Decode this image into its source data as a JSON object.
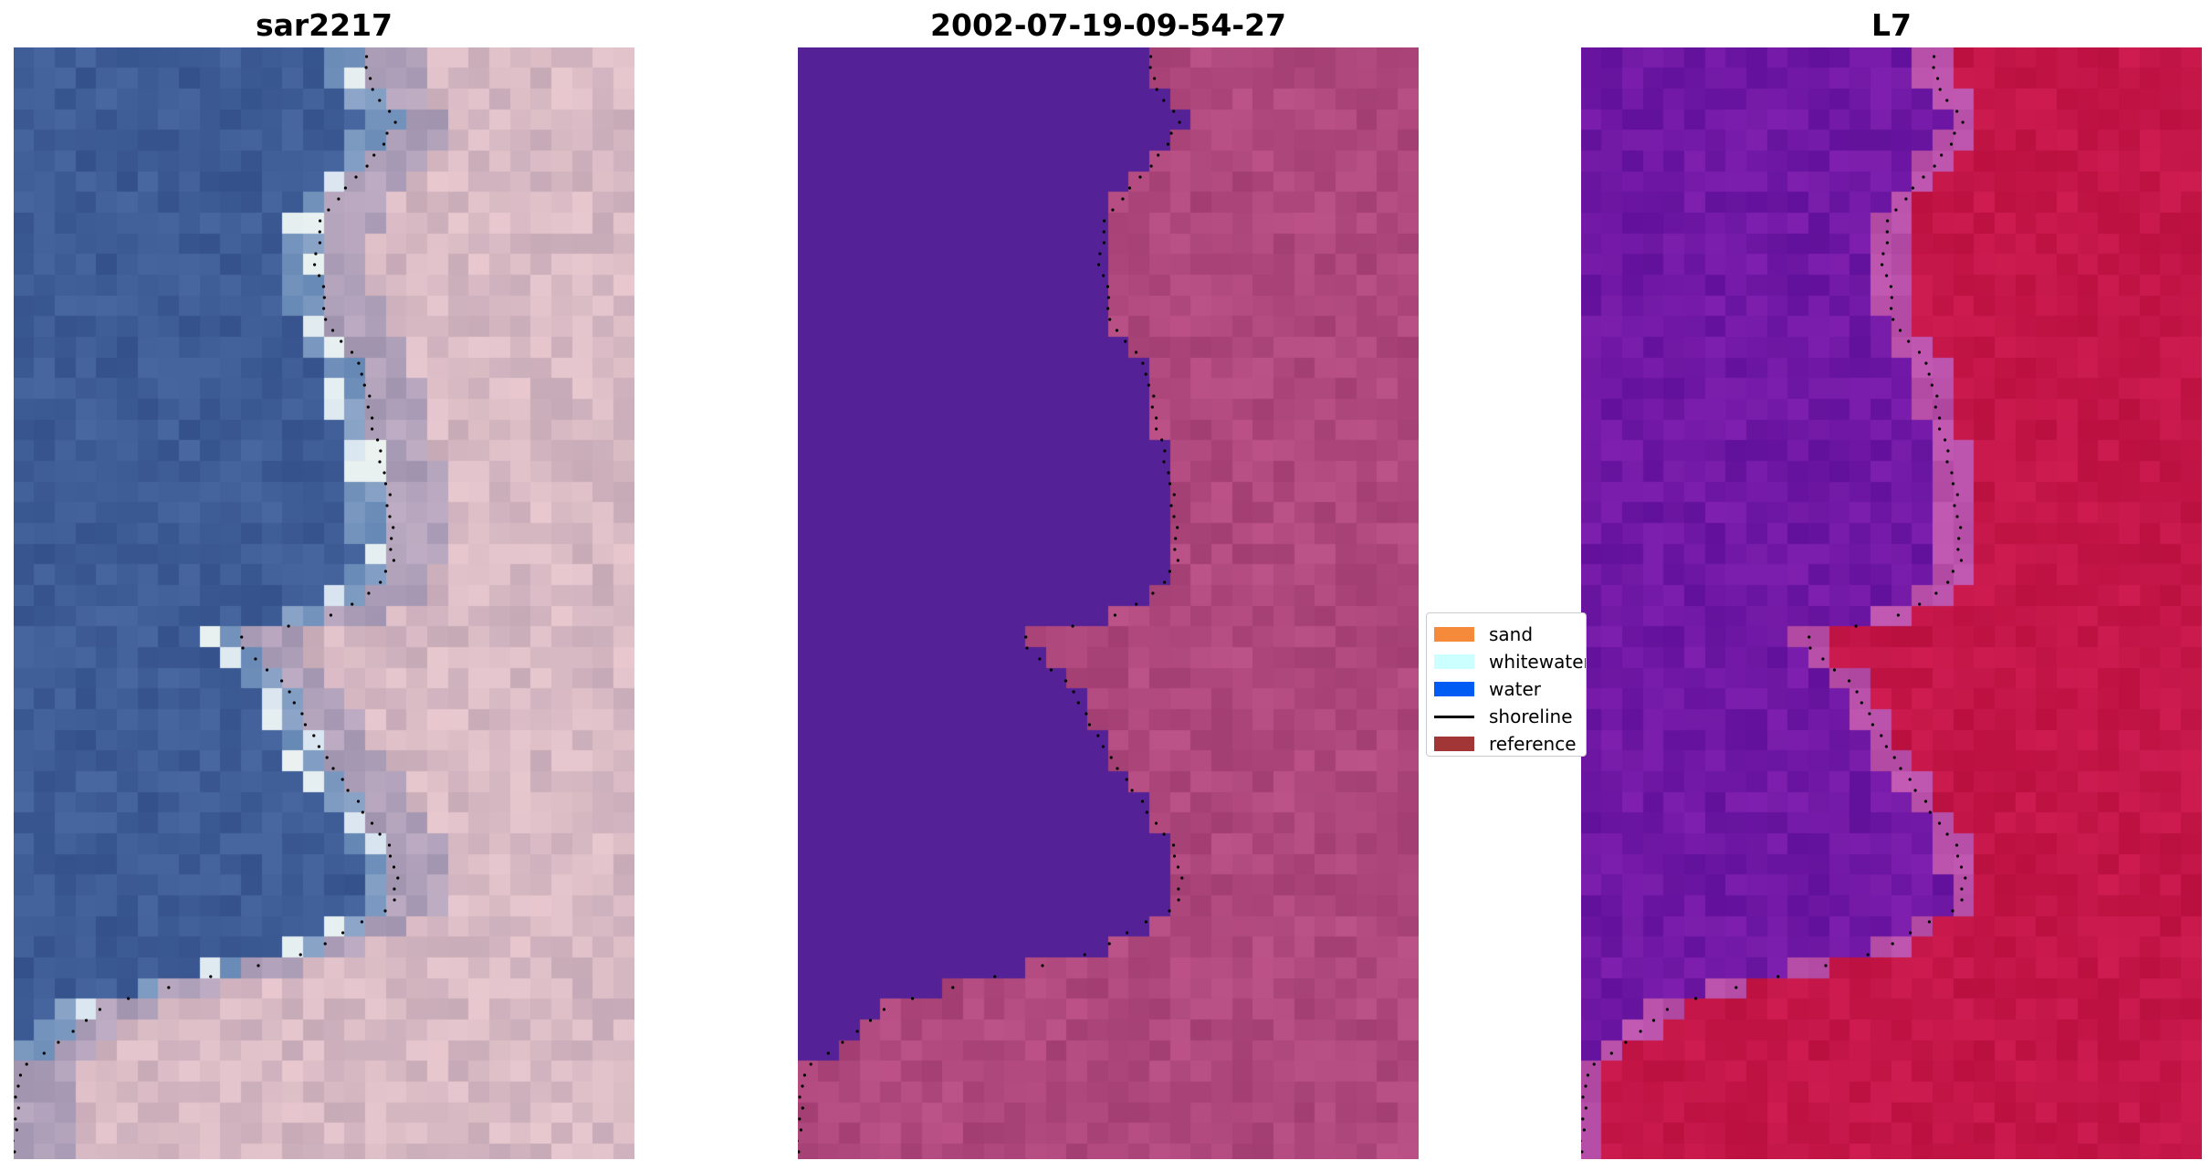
{
  "panels": [
    {
      "title": "sar2217"
    },
    {
      "title": "2002-07-19-09-54-27"
    },
    {
      "title": "L7"
    }
  ],
  "legend": {
    "items": [
      {
        "label": "sand",
        "color": "#f58a3a",
        "type": "patch"
      },
      {
        "label": "whitewater",
        "color": "#ccffff",
        "type": "patch"
      },
      {
        "label": "water",
        "color": "#005cf2",
        "type": "patch"
      },
      {
        "label": "shoreline",
        "color": "#000000",
        "type": "line"
      },
      {
        "label": "reference",
        "color": "#a23535",
        "type": "patch"
      }
    ]
  }
}
